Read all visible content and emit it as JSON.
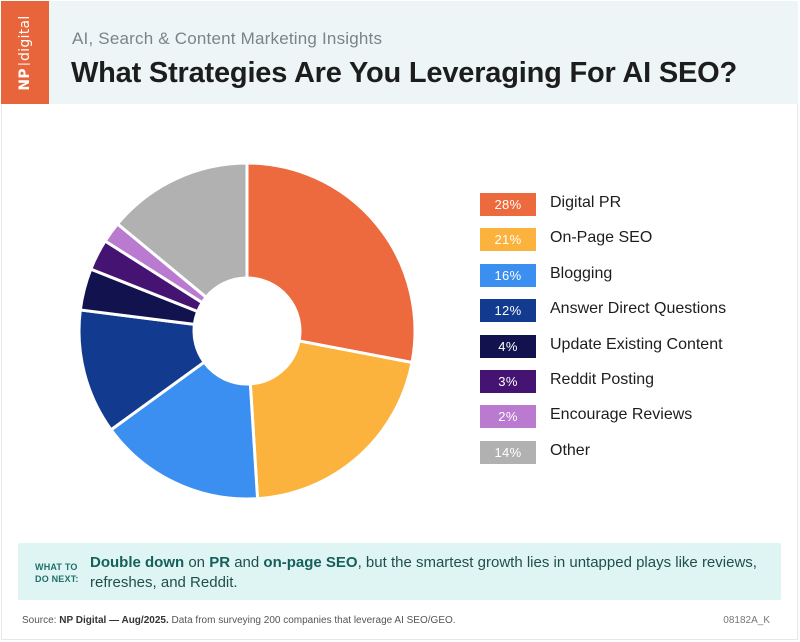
{
  "header": {
    "brand": {
      "np": "NP",
      "digital": "digital"
    },
    "kicker": "AI, Search & Content Marketing Insights",
    "title": "What Strategies Are You Leveraging For AI SEO?"
  },
  "colors": {
    "brand": "#e8643a",
    "header_bg": "#eef5f6",
    "callout_bg": "#dff5f4"
  },
  "chart_data": {
    "type": "pie",
    "donut": true,
    "categories": [
      "Digital PR",
      "On-Page SEO",
      "Blogging",
      "Answer Direct Questions",
      "Update Existing Content",
      "Reddit Posting",
      "Encourage Reviews",
      "Other"
    ],
    "values": [
      28,
      21,
      16,
      12,
      4,
      3,
      2,
      14
    ],
    "value_labels": [
      "28%",
      "21%",
      "16%",
      "12%",
      "4%",
      "3%",
      "2%",
      "14%"
    ],
    "colors": [
      "#ec6a3d",
      "#fbb33d",
      "#3b8ff0",
      "#123a8e",
      "#12134e",
      "#451472",
      "#b97ad0",
      "#b1b1b1"
    ],
    "legend": "right"
  },
  "callout": {
    "tag_line1": "WHAT TO",
    "tag_line2": "DO NEXT:",
    "strong1": "Double down",
    "text1": " on ",
    "strong2": "PR",
    "text2": " and ",
    "strong3": "on-page SEO",
    "text3": ", but the smartest growth lies in untapped plays like reviews, refreshes, and Reddit."
  },
  "footer": {
    "source_prefix": "Source: ",
    "source_bold": "NP Digital — Aug/2025.",
    "source_rest": " Data from surveying 200 companies that leverage AI SEO/GEO.",
    "code": "08182A_K"
  }
}
